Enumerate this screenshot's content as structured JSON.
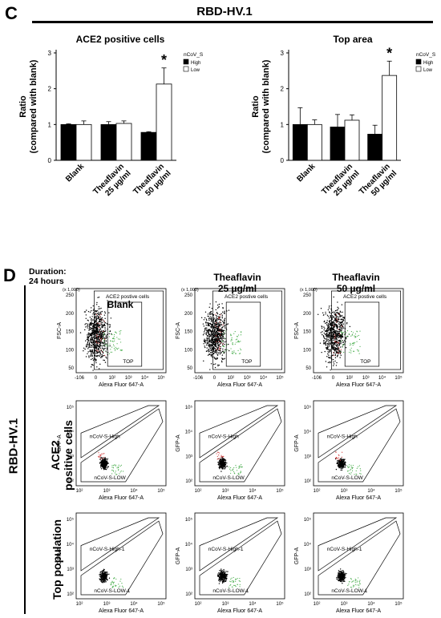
{
  "panel_c": {
    "letter": "C",
    "title": "RBD-HV.1"
  },
  "panel_d": {
    "letter": "D",
    "duration": "Duration:\n24 hours",
    "side_label": "RBD-HV.1",
    "columns": [
      {
        "line1": "Blank",
        "line2": ""
      },
      {
        "line1": "Theaflavin",
        "line2": "25 µg/ml"
      },
      {
        "line1": "Theaflavin",
        "line2": "50 µg/ml"
      }
    ],
    "row_labels": [
      "ACE2\npositive cells",
      "Top population"
    ],
    "scatter": {
      "x_label": "Alexa Fluor 647-A",
      "y_label_top": "FSC-A",
      "y_label_gfp": "GFP-A",
      "scale_note": "(x 1,000)",
      "gate_ace2": "ACE2 postive cells",
      "gate_top": "TOP",
      "gate_high": "nCoV-S-High",
      "gate_low": "nCoV-S-LOW",
      "gate_high_1": "nCoV-S-High-1",
      "gate_low_1": "nCoV-S-LOW-1",
      "x_ticks": [
        "-106",
        "0",
        "10²",
        "10³",
        "10⁴",
        "10⁵"
      ],
      "fsc_ticks": [
        "250",
        "200",
        "150",
        "100",
        "50"
      ],
      "gfp_ticks": [
        "10⁵",
        "10⁴",
        "10³",
        "10²"
      ]
    }
  },
  "colors": {
    "high": "#000000",
    "low": "#ffffff",
    "red_dots": "#d23b3b",
    "green_dots": "#4caf50"
  },
  "chart_data": [
    {
      "type": "bar",
      "title": "ACE2 positive cells",
      "ylabel": "Ratio\n(compared with blank)",
      "categories": [
        "Blank",
        "Theaflavin\n25 µg/ml",
        "Theaflavin\n50 µg/ml"
      ],
      "legend_title": "nCoV_S",
      "series": [
        {
          "name": "High",
          "values": [
            1.0,
            1.0,
            0.78
          ],
          "errors": [
            0.02,
            0.08,
            0.02
          ]
        },
        {
          "name": "Low",
          "values": [
            1.0,
            1.03,
            2.13
          ],
          "errors": [
            0.1,
            0.07,
            0.45
          ]
        }
      ],
      "yticks": [
        "0",
        "1",
        "2",
        "3"
      ],
      "ylim": [
        0,
        3
      ],
      "annotation": "*"
    },
    {
      "type": "bar",
      "title": "Top area",
      "ylabel": "Ratio\n(compared with blank)",
      "categories": [
        "Blank",
        "Theaflavin\n25 µg/ml",
        "Theaflavin\n50 µg/ml"
      ],
      "legend_title": "nCoV_S",
      "series": [
        {
          "name": "High",
          "values": [
            1.0,
            0.93,
            0.73
          ],
          "errors": [
            0.47,
            0.35,
            0.25
          ]
        },
        {
          "name": "Low",
          "values": [
            1.0,
            1.12,
            2.37
          ],
          "errors": [
            0.13,
            0.15,
            0.4
          ]
        }
      ],
      "yticks": [
        "0",
        "1",
        "2",
        "3"
      ],
      "ylim": [
        0,
        3
      ],
      "annotation": "*"
    }
  ]
}
